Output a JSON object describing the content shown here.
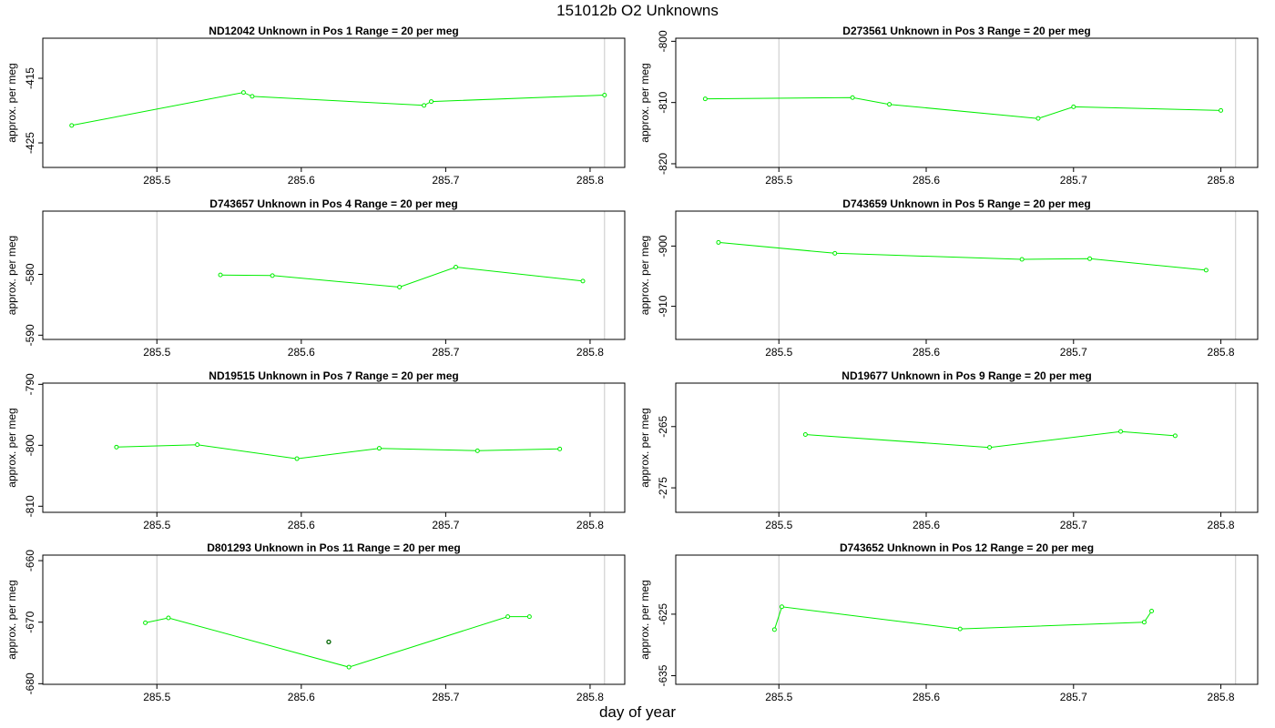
{
  "page": {
    "title": "151012b  O2 Unknowns",
    "xlabel": "day of year"
  },
  "colors": {
    "series": "#00ee00",
    "outlier": "#006400",
    "frame": "#000000",
    "vline": "#c8c8c8"
  },
  "chart_data": [
    {
      "type": "line",
      "title": "ND12042    Unknown in Pos 1          Range = 20 per meg",
      "ylabel": "approx. per meg",
      "xlim": [
        285.421,
        285.824
      ],
      "ylim": [
        -428.8,
        -408.8
      ],
      "xticks": [
        285.5,
        285.6,
        285.7,
        285.8
      ],
      "yticks": [
        -425,
        -415
      ],
      "vlines": [
        285.5,
        285.81
      ],
      "points": [
        [
          285.441,
          -422.3
        ],
        [
          285.56,
          -417.2
        ],
        [
          285.566,
          -417.8
        ],
        [
          285.685,
          -419.2
        ],
        [
          285.69,
          -418.6
        ],
        [
          285.81,
          -417.6
        ]
      ]
    },
    {
      "type": "line",
      "title": "D273561    Unknown in Pos 3          Range = 20 per meg",
      "ylabel": "approx. per meg",
      "xlim": [
        285.43,
        285.825
      ],
      "ylim": [
        -820.6,
        -799.5
      ],
      "xticks": [
        285.5,
        285.6,
        285.7,
        285.8
      ],
      "yticks": [
        -820,
        -810,
        -800
      ],
      "vlines": [
        285.5,
        285.81
      ],
      "points": [
        [
          285.45,
          -809.4
        ],
        [
          285.55,
          -809.2
        ],
        [
          285.575,
          -810.3
        ],
        [
          285.676,
          -812.6
        ],
        [
          285.7,
          -810.7
        ],
        [
          285.8,
          -811.3
        ]
      ]
    },
    {
      "type": "line",
      "title": "D743657    Unknown in Pos 4          Range = 20 per meg",
      "ylabel": "approx. per meg",
      "xlim": [
        285.421,
        285.824
      ],
      "ylim": [
        -590.7,
        -569.6
      ],
      "xticks": [
        285.5,
        285.6,
        285.7,
        285.8
      ],
      "yticks": [
        -590,
        -580
      ],
      "vlines": [
        285.5,
        285.81
      ],
      "points": [
        [
          285.544,
          -580.1
        ],
        [
          285.58,
          -580.2
        ],
        [
          285.668,
          -582.1
        ],
        [
          285.707,
          -578.8
        ],
        [
          285.795,
          -581.1
        ]
      ]
    },
    {
      "type": "line",
      "title": "D743659    Unknown in Pos 5          Range = 20 per meg",
      "ylabel": "approx. per meg",
      "xlim": [
        285.43,
        285.825
      ],
      "ylim": [
        -915.5,
        -894.2
      ],
      "xticks": [
        285.5,
        285.6,
        285.7,
        285.8
      ],
      "yticks": [
        -910,
        -900
      ],
      "vlines": [
        285.5,
        285.81
      ],
      "points": [
        [
          285.459,
          -899.4
        ],
        [
          285.538,
          -901.2
        ],
        [
          285.665,
          -902.2
        ],
        [
          285.711,
          -902.1
        ],
        [
          285.79,
          -904
        ]
      ]
    },
    {
      "type": "line",
      "title": "ND19515    Unknown in Pos 7          Range = 20 per meg",
      "ylabel": "approx. per meg",
      "xlim": [
        285.421,
        285.824
      ],
      "ylim": [
        -811,
        -789.8
      ],
      "xticks": [
        285.5,
        285.6,
        285.7,
        285.8
      ],
      "yticks": [
        -810,
        -800,
        -790
      ],
      "vlines": [
        285.5,
        285.81
      ],
      "points": [
        [
          285.472,
          -800.3
        ],
        [
          285.528,
          -799.9
        ],
        [
          285.597,
          -802.2
        ],
        [
          285.654,
          -800.5
        ],
        [
          285.722,
          -800.9
        ],
        [
          285.779,
          -800.6
        ]
      ]
    },
    {
      "type": "line",
      "title": "ND19677    Unknown in Pos 9          Range = 20 per meg",
      "ylabel": "approx. per meg",
      "xlim": [
        285.43,
        285.825
      ],
      "ylim": [
        -279,
        -257.9
      ],
      "xticks": [
        285.5,
        285.6,
        285.7,
        285.8
      ],
      "yticks": [
        -275,
        -265
      ],
      "vlines": [
        285.5,
        285.81
      ],
      "points": [
        [
          285.518,
          -266.3
        ],
        [
          285.643,
          -268.4
        ],
        [
          285.732,
          -265.8
        ],
        [
          285.769,
          -266.5
        ]
      ]
    },
    {
      "type": "line",
      "title": "D801293    Unknown in Pos 11          Range = 20 per meg",
      "ylabel": "approx. per meg",
      "xlim": [
        285.421,
        285.824
      ],
      "ylim": [
        -680.1,
        -659.1
      ],
      "xticks": [
        285.5,
        285.6,
        285.7,
        285.8
      ],
      "yticks": [
        -680,
        -670,
        -660
      ],
      "vlines": [
        285.5,
        285.81
      ],
      "points": [
        [
          285.492,
          -670.1
        ],
        [
          285.508,
          -669.3
        ],
        [
          285.633,
          -677.3
        ],
        [
          285.743,
          -669.1
        ],
        [
          285.758,
          -669.1
        ]
      ],
      "outliers": [
        [
          285.619,
          -673.2
        ]
      ]
    },
    {
      "type": "line",
      "title": "D743652    Unknown in Pos 12          Range = 20 per meg",
      "ylabel": "approx. per meg",
      "xlim": [
        285.43,
        285.825
      ],
      "ylim": [
        -636.4,
        -615.4
      ],
      "xticks": [
        285.5,
        285.6,
        285.7,
        285.8
      ],
      "yticks": [
        -635,
        -625
      ],
      "vlines": [
        285.5,
        285.81
      ],
      "points": [
        [
          285.497,
          -627.5
        ],
        [
          285.502,
          -623.8
        ],
        [
          285.623,
          -627.4
        ],
        [
          285.748,
          -626.3
        ],
        [
          285.753,
          -624.5
        ]
      ]
    }
  ]
}
